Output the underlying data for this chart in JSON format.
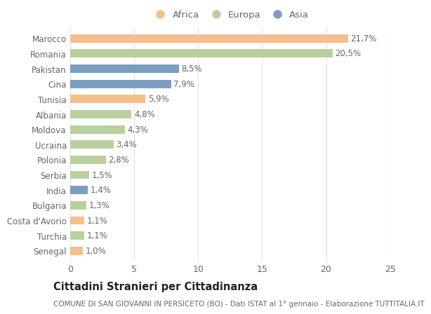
{
  "countries": [
    "Marocco",
    "Romania",
    "Pakistan",
    "Cina",
    "Tunisia",
    "Albania",
    "Moldova",
    "Ucraina",
    "Polonia",
    "Serbia",
    "India",
    "Bulgaria",
    "Costa d'Avorio",
    "Turchia",
    "Senegal"
  ],
  "values": [
    21.7,
    20.5,
    8.5,
    7.9,
    5.9,
    4.8,
    4.3,
    3.4,
    2.8,
    1.5,
    1.4,
    1.3,
    1.1,
    1.1,
    1.0
  ],
  "labels": [
    "21,7%",
    "20,5%",
    "8,5%",
    "7,9%",
    "5,9%",
    "4,8%",
    "4,3%",
    "3,4%",
    "2,8%",
    "1,5%",
    "1,4%",
    "1,3%",
    "1,1%",
    "1,1%",
    "1,0%"
  ],
  "continents": [
    "Africa",
    "Europa",
    "Asia",
    "Asia",
    "Africa",
    "Europa",
    "Europa",
    "Europa",
    "Europa",
    "Europa",
    "Asia",
    "Europa",
    "Africa",
    "Europa",
    "Africa"
  ],
  "colors": {
    "Africa": "#F5BE8D",
    "Europa": "#BACF9E",
    "Asia": "#7B9EC0"
  },
  "title": "Cittadini Stranieri per Cittadinanza",
  "subtitle": "COMUNE DI SAN GIOVANNI IN PERSICETO (BO) - Dati ISTAT al 1° gennaio - Elaborazione TUTTITALIA.IT",
  "xlim": [
    0,
    25
  ],
  "xticks": [
    0,
    5,
    10,
    15,
    20,
    25
  ],
  "background_color": "#ffffff",
  "grid_color": "#e0e0e0",
  "bar_height": 0.55,
  "label_fontsize": 8.5,
  "ytick_fontsize": 8.5,
  "xtick_fontsize": 9,
  "title_fontsize": 10.5,
  "subtitle_fontsize": 7.5,
  "legend_fontsize": 9.5
}
